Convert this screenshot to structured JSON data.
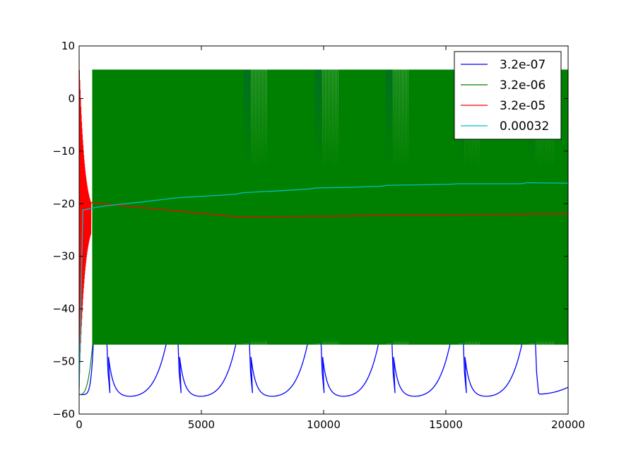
{
  "chart_data": {
    "type": "line",
    "title": "",
    "xlabel": "",
    "ylabel": "",
    "xlim": [
      0,
      20000
    ],
    "ylim": [
      -60,
      10
    ],
    "x_ticks": [
      0,
      5000,
      10000,
      15000,
      20000
    ],
    "x_tick_labels": [
      "0",
      "5000",
      "10000",
      "15000",
      "20000"
    ],
    "y_ticks": [
      10,
      0,
      -10,
      -20,
      -30,
      -40,
      -50,
      -60
    ],
    "y_tick_labels": [
      "10",
      "0",
      "−10",
      "−20",
      "−30",
      "−40",
      "−50",
      "−60"
    ],
    "grid": false,
    "legend_position": "top-right",
    "colors": {
      "3.2e-07": "#0000ff",
      "3.2e-06": "#008000",
      "3.2e-05": "#ff0000",
      "0.00032": "#00bfbf"
    },
    "series": [
      {
        "name": "3.2e-07",
        "color": "#0000ff",
        "kind": "bursting",
        "burst_starts": [
          580,
          3570,
          6420,
          9350,
          12250,
          15180,
          18120
        ],
        "burst_ends": [
          1140,
          4050,
          6970,
          9900,
          12800,
          15720,
          18670
        ],
        "spike_max": 5.5,
        "spike_min": -46.5,
        "interburst_min": -56.8,
        "interburst_peak": -46.5
      },
      {
        "name": "3.2e-06",
        "color": "#008000",
        "kind": "tonic_spiking",
        "x_start": 0,
        "y_start": -56.3,
        "onset": 550,
        "spike_max": 5.5,
        "spike_min": -46.8,
        "gap_clusters": [
          [
            6700,
            7700
          ],
          [
            9600,
            10600
          ],
          [
            12550,
            13500
          ],
          [
            15500,
            16400
          ],
          [
            18400,
            19400
          ]
        ],
        "approx_spike_count": 1000
      },
      {
        "name": "3.2e-05",
        "color": "#ff0000",
        "kind": "damped_oscillation",
        "x": [
          0,
          6500,
          10000,
          12500,
          15000,
          18000,
          20000
        ],
        "y": [
          -22.6,
          -22.5,
          -22.4,
          -22.2,
          -22.1,
          -22.0,
          -21.9
        ],
        "oscillation_end": 480,
        "oscillation_start_amplitude": 28,
        "oscillation_count": 32
      },
      {
        "name": "0.00032",
        "color": "#00bfbf",
        "kind": "line",
        "x": [
          0,
          150,
          800,
          1300,
          2500,
          3600,
          3900,
          5000,
          6400,
          6700,
          8000,
          9400,
          9700,
          11000,
          12300,
          12600,
          14000,
          15200,
          15500,
          17000,
          18100,
          18300,
          20000
        ],
        "y": [
          -55.5,
          -21.2,
          -20.6,
          -20.3,
          -19.7,
          -19.1,
          -18.9,
          -18.6,
          -18.2,
          -17.9,
          -17.6,
          -17.2,
          -17.0,
          -16.9,
          -16.7,
          -16.5,
          -16.4,
          -16.3,
          -16.2,
          -16.2,
          -16.2,
          -16.0,
          -16.1
        ]
      }
    ],
    "legend": [
      {
        "label": "3.2e-07",
        "color": "#0000ff"
      },
      {
        "label": "3.2e-06",
        "color": "#008000"
      },
      {
        "label": "3.2e-05",
        "color": "#ff0000"
      },
      {
        "label": "0.00032",
        "color": "#00bfbf"
      }
    ]
  }
}
